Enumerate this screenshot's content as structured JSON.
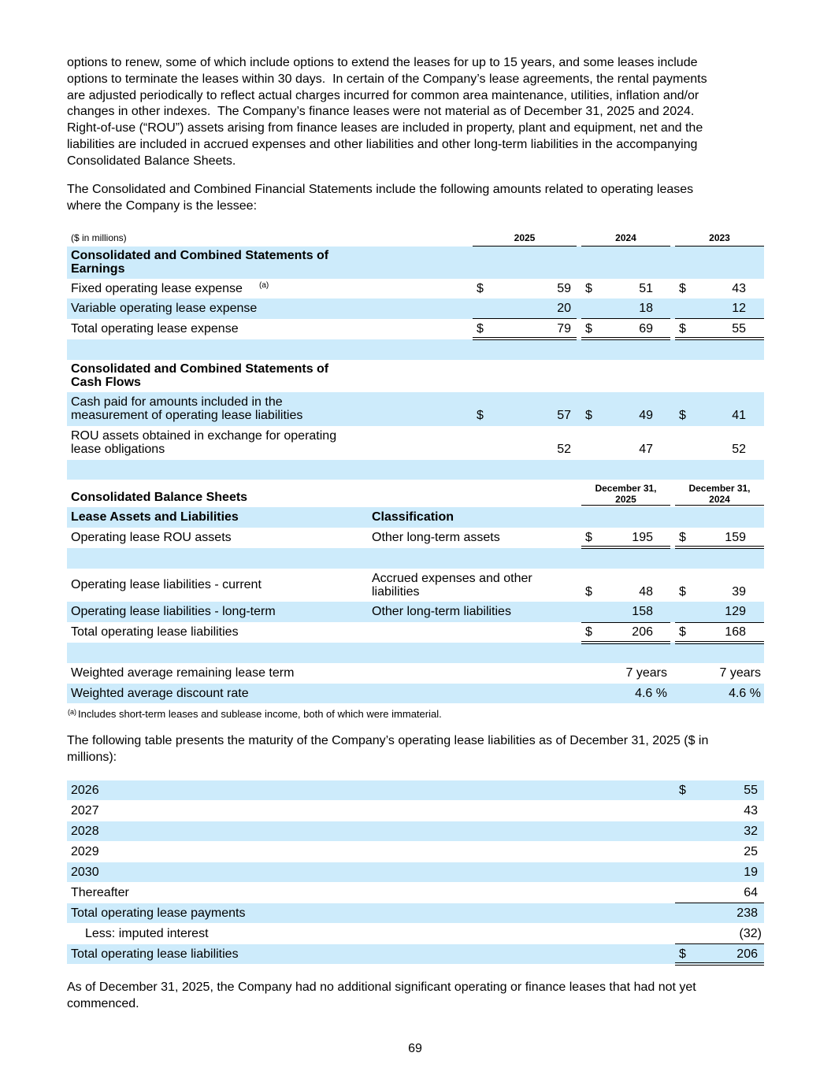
{
  "paragraphs": [
    [
      "options to renew, some of which include options to extend the leases for up to 15 years, and some leases include",
      "options to terminate the leases within 30 days.  In certain of the Company’s lease agreements, the rental payments",
      "are adjusted periodically to reflect actual charges incurred for common area maintenance, utilities, inflation and/or",
      "changes in other indexes.  The Company’s finance leases were not material as of December 31, 2025 and 2024.",
      "Right-of-use (“ROU”) assets arising from finance leases are included in property, plant and equipment, net and the",
      "liabilities are included in accrued expenses and other liabilities and other long-term liabilities in the accompanying",
      "Consolidated Balance Sheets."
    ],
    [
      "The Consolidated and Combined Financial Statements include the following amounts related to operating leases",
      "where the Company is the lessee:"
    ],
    [
      "The following table presents the maturity of the Company’s operating lease liabilities as of December 31, 2025 ($ in",
      "millions):"
    ],
    [
      "As of December 31, 2025, the Company had no additional significant operating or finance leases that had not yet",
      "commenced."
    ]
  ],
  "table1": {
    "unit": "($ in millions)",
    "columns": [
      "2025",
      "2024",
      "2023"
    ],
    "rows": [
      {
        "label": [
          "Consolidated and Combined Statements of",
          "Earnings"
        ]
      },
      {
        "label": "Fixed operating lease expense",
        "note": "(a)",
        "cells": [
          {
            "cur": "$",
            "value": 59
          },
          {
            "cur": "$",
            "value": 51
          },
          {
            "cur": "$",
            "value": 43
          }
        ]
      },
      {
        "label": "Variable operating lease expense",
        "cells": [
          {
            "value": 20
          },
          {
            "value": 18
          },
          {
            "value": 12
          }
        ]
      },
      {
        "label": "Total operating lease expense",
        "cells": [
          {
            "cur": "$",
            "value": 79
          },
          {
            "cur": "$",
            "value": 69
          },
          {
            "cur": "$",
            "value": 55
          }
        ]
      },
      {
        "label": [
          "Consolidated and Combined Statements of",
          "Cash Flows"
        ]
      },
      {
        "label": [
          "Cash paid for amounts included in the",
          "measurement of operating lease liabilities"
        ],
        "cells": [
          {
            "cur": "$",
            "value": 57
          },
          {
            "cur": "$",
            "value": 49
          },
          {
            "cur": "$",
            "value": 41
          }
        ]
      },
      {
        "label": [
          "ROU assets obtained in exchange for operating",
          "lease obligations"
        ],
        "cells": [
          {
            "value": 52
          },
          {
            "value": 47
          },
          {
            "value": 52
          }
        ]
      }
    ]
  },
  "table2": {
    "title": "Consolidated Balance Sheets",
    "columns": [
      [
        "December 31,",
        "2025"
      ],
      [
        "December 31,",
        "2024"
      ]
    ],
    "header": [
      "Lease Assets and Liabilities",
      "Classification"
    ],
    "rows": [
      {
        "label": "Operating lease ROU assets",
        "classification": "Other long-term assets",
        "cells": [
          {
            "cur": "$",
            "value": 195
          },
          {
            "cur": "$",
            "value": 159
          }
        ]
      },
      {
        "label": "Operating lease liabilities - current",
        "classification": [
          "Accrued expenses and other",
          "liabilities"
        ],
        "cells": [
          {
            "cur": "$",
            "value": 48
          },
          {
            "cur": "$",
            "value": 39
          }
        ]
      },
      {
        "label": "Operating lease liabilities - long-term",
        "classification": "Other long-term liabilities",
        "cells": [
          {
            "value": 158
          },
          {
            "value": 129
          }
        ]
      },
      {
        "label": "Total operating lease liabilities",
        "cells": [
          {
            "cur": "$",
            "value": 206
          },
          {
            "cur": "$",
            "value": 168
          }
        ]
      },
      {
        "label": "Weighted average remaining lease term",
        "cells": [
          {
            "value": "7 years"
          },
          {
            "value": "7 years"
          }
        ]
      },
      {
        "label": "Weighted average discount rate",
        "cells": [
          {
            "value": "4.6 %"
          },
          {
            "value": "4.6 %"
          }
        ]
      }
    ]
  },
  "footnote": {
    "marker": "(a)",
    "text": "Includes short-term leases and sublease income, both of which were immaterial."
  },
  "maturity": {
    "rows": [
      {
        "label": "2026",
        "cur": "$",
        "value": 55
      },
      {
        "label": "2027",
        "value": 43
      },
      {
        "label": "2028",
        "value": 32
      },
      {
        "label": "2029",
        "value": 25
      },
      {
        "label": "2030",
        "value": 19
      },
      {
        "label": "Thereafter",
        "value": 64
      },
      {
        "label": "Total operating lease payments",
        "value": 238
      },
      {
        "label": "Less: imputed interest",
        "value": "(32)"
      },
      {
        "label": "Total operating lease liabilities",
        "cur": "$",
        "value": 206
      }
    ]
  },
  "page_number": "69"
}
